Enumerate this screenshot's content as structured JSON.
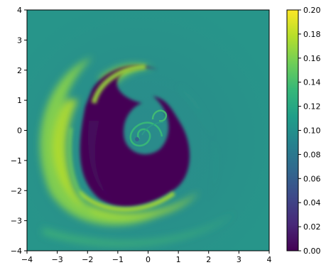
{
  "chart_data": {
    "type": "heatmap",
    "title": "",
    "xlabel": "",
    "ylabel": "",
    "xlim": [
      -4,
      4
    ],
    "ylim": [
      -4,
      4
    ],
    "x_ticks": [
      -4,
      -3,
      -2,
      -1,
      0,
      1,
      2,
      3,
      4
    ],
    "y_ticks": [
      -4,
      -3,
      -2,
      -1,
      0,
      1,
      2,
      3,
      4
    ],
    "x_tick_labels": [
      "−4",
      "−3",
      "−2",
      "−1",
      "0",
      "1",
      "2",
      "3",
      "4"
    ],
    "y_tick_labels": [
      "−4",
      "−3",
      "−2",
      "−1",
      "0",
      "1",
      "2",
      "3",
      "4"
    ],
    "grid": false,
    "colormap": "viridis",
    "colorbar": {
      "vmin": 0.0,
      "vmax": 0.2,
      "ticks": [
        0.0,
        0.02,
        0.04,
        0.06,
        0.08,
        0.1,
        0.12,
        0.14,
        0.16,
        0.18,
        0.2
      ],
      "tick_labels": [
        "0.00",
        "0.02",
        "0.04",
        "0.06",
        "0.08",
        "0.10",
        "0.12",
        "0.14",
        "0.16",
        "0.18",
        "0.20"
      ],
      "colors": [
        "#440154",
        "#482878",
        "#3e4989",
        "#31688e",
        "#26828e",
        "#1f9e89",
        "#35b779",
        "#6ece58",
        "#b5de2b",
        "#fde725"
      ]
    },
    "background_value": 0.125,
    "features": [
      {
        "kind": "low-density spiral core",
        "x": -0.6,
        "y": -0.4,
        "value": 0.0
      },
      {
        "kind": "bright outer arm",
        "x": -2.8,
        "y": -0.2,
        "value": 0.155
      },
      {
        "kind": "bright upper arm",
        "x": -1.5,
        "y": 1.6,
        "value": 0.145
      },
      {
        "kind": "bright lower arm",
        "x": -1.2,
        "y": -2.6,
        "value": 0.15
      },
      {
        "kind": "inner vortex",
        "x": 0.0,
        "y": -0.2,
        "value": 0.11
      }
    ]
  }
}
